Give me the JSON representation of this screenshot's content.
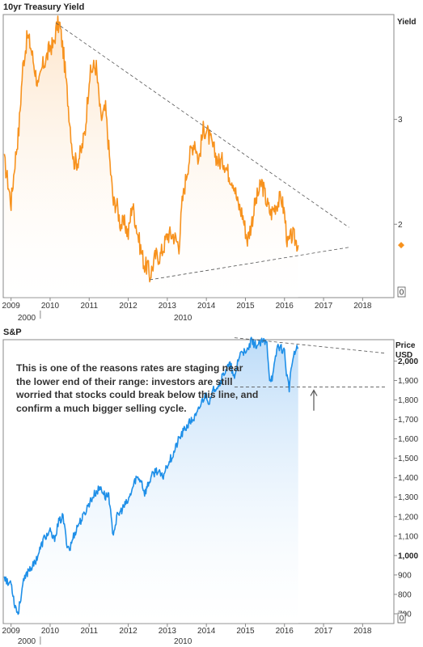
{
  "chart_data": [
    {
      "type": "area",
      "title": "10yr Treasury Yield",
      "ylabel": "Yield",
      "ylim": [
        1.3,
        4.0
      ],
      "xlim": [
        2008.8,
        2018.8
      ],
      "color": "#f7921e",
      "x_ticks": [
        "2009",
        "2010",
        "2011",
        "2012",
        "2013",
        "2014",
        "2015",
        "2016",
        "2017",
        "2018"
      ],
      "x_tick_values": [
        2009,
        2010,
        2011,
        2012,
        2013,
        2014,
        2015,
        2016,
        2017,
        2018
      ],
      "y_ticks": [
        2,
        3
      ],
      "y_tick_labels": [
        "2",
        "3"
      ],
      "y_zero_label": "0",
      "sub_labels": [
        "2000",
        "2010"
      ],
      "current_value": 1.8,
      "series": [
        {
          "values_x": [
            2008.83,
            2008.92,
            2009.0,
            2009.1,
            2009.2,
            2009.3,
            2009.42,
            2009.5,
            2009.6,
            2009.7,
            2009.8,
            2009.92,
            2010.0,
            2010.08,
            2010.18,
            2010.25,
            2010.35,
            2010.5,
            2010.6,
            2010.7,
            2010.8,
            2010.9,
            2011.0,
            2011.1,
            2011.18,
            2011.3,
            2011.42,
            2011.55,
            2011.62,
            2011.7,
            2011.8,
            2011.92,
            2012.0,
            2012.1,
            2012.2,
            2012.3,
            2012.42,
            2012.5,
            2012.55,
            2012.7,
            2012.82,
            2012.92,
            2013.0,
            2013.15,
            2013.3,
            2013.38,
            2013.5,
            2013.6,
            2013.7,
            2013.8,
            2013.92,
            2014.0,
            2014.1,
            2014.2,
            2014.3,
            2014.45,
            2014.55,
            2014.7,
            2014.8,
            2014.92,
            2015.05,
            2015.15,
            2015.25,
            2015.42,
            2015.55,
            2015.65,
            2015.8,
            2015.92,
            2016.0,
            2016.08,
            2016.2,
            2016.35
          ],
          "values_y": [
            2.6,
            2.4,
            2.2,
            2.6,
            2.9,
            3.5,
            3.8,
            3.7,
            3.5,
            3.3,
            3.5,
            3.6,
            3.7,
            3.7,
            3.9,
            3.9,
            3.6,
            3.0,
            2.6,
            2.6,
            2.7,
            2.9,
            3.4,
            3.5,
            3.5,
            3.0,
            3.1,
            2.5,
            2.2,
            2.2,
            2.0,
            2.0,
            1.9,
            2.2,
            2.0,
            1.8,
            1.6,
            1.6,
            1.5,
            1.7,
            1.7,
            1.8,
            1.9,
            1.9,
            1.8,
            2.2,
            2.5,
            2.7,
            2.8,
            2.6,
            2.9,
            2.9,
            2.8,
            2.7,
            2.6,
            2.6,
            2.5,
            2.4,
            2.2,
            2.1,
            1.85,
            2.0,
            2.2,
            2.4,
            2.2,
            2.1,
            2.2,
            2.25,
            2.1,
            1.8,
            1.9,
            1.8
          ]
        }
      ]
    },
    {
      "type": "area",
      "title": "S&P",
      "ylabel": "Price USD",
      "ylabel_lines": [
        "Price",
        "USD"
      ],
      "ylim": [
        650,
        2110
      ],
      "xlim": [
        2008.8,
        2018.8
      ],
      "color": "#1e8fe8",
      "x_ticks": [
        "2009",
        "2010",
        "2011",
        "2012",
        "2013",
        "2014",
        "2015",
        "2016",
        "2017",
        "2018"
      ],
      "x_tick_values": [
        2009,
        2010,
        2011,
        2012,
        2013,
        2014,
        2015,
        2016,
        2017,
        2018
      ],
      "y_ticks": [
        700,
        800,
        900,
        1000,
        1100,
        1200,
        1300,
        1400,
        1500,
        1600,
        1700,
        1800,
        1900,
        2000
      ],
      "y_tick_labels": [
        "700",
        "800",
        "900",
        "1,000",
        "1,100",
        "1,200",
        "1,300",
        "1,400",
        "1,500",
        "1,600",
        "1,700",
        "1,800",
        "1,900",
        "2,000"
      ],
      "y_zero_label": "0",
      "sub_labels": [
        "2000",
        "2010"
      ],
      "annotation": "This is one of the reasons rates are staging near the lower end of their range: investors are still worried that stocks could break below this line, and confirm a much bigger selling cycle.",
      "support_level": 1867,
      "series": [
        {
          "values_x": [
            2008.83,
            2008.92,
            2009.0,
            2009.08,
            2009.18,
            2009.3,
            2009.45,
            2009.58,
            2009.72,
            2009.85,
            2010.0,
            2010.1,
            2010.22,
            2010.33,
            2010.42,
            2010.5,
            2010.6,
            2010.72,
            2010.85,
            2011.0,
            2011.15,
            2011.3,
            2011.42,
            2011.5,
            2011.58,
            2011.62,
            2011.72,
            2011.85,
            2012.0,
            2012.2,
            2012.33,
            2012.42,
            2012.58,
            2012.72,
            2012.88,
            2013.0,
            2013.15,
            2013.3,
            2013.45,
            2013.6,
            2013.75,
            2013.9,
            2014.0,
            2014.08,
            2014.2,
            2014.35,
            2014.5,
            2014.62,
            2014.72,
            2014.8,
            2014.92,
            2015.0,
            2015.15,
            2015.3,
            2015.45,
            2015.55,
            2015.62,
            2015.7,
            2015.82,
            2015.9,
            2016.0,
            2016.05,
            2016.12,
            2016.2,
            2016.3,
            2016.35
          ],
          "values_y": [
            900,
            850,
            870,
            760,
            700,
            850,
            930,
            950,
            1020,
            1090,
            1120,
            1080,
            1170,
            1200,
            1070,
            1030,
            1100,
            1160,
            1200,
            1270,
            1320,
            1350,
            1300,
            1320,
            1150,
            1120,
            1200,
            1240,
            1280,
            1400,
            1390,
            1320,
            1400,
            1440,
            1400,
            1470,
            1520,
            1600,
            1650,
            1690,
            1720,
            1800,
            1830,
            1780,
            1860,
            1890,
            1960,
            1980,
            1900,
            2000,
            2060,
            2030,
            2100,
            2080,
            2100,
            2090,
            1910,
            1920,
            2080,
            2070,
            2050,
            1940,
            1860,
            2000,
            2060,
            2070
          ]
        }
      ]
    }
  ]
}
